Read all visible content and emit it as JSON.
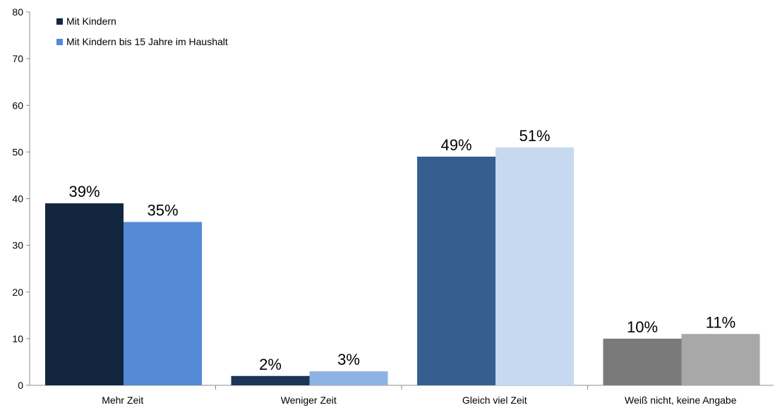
{
  "chart_data": {
    "type": "bar",
    "title": "",
    "xlabel": "",
    "ylabel": "",
    "ylim": [
      0,
      80
    ],
    "yticks": [
      0,
      10,
      20,
      30,
      40,
      50,
      60,
      70,
      80
    ],
    "grid": false,
    "legend_position": "top-left",
    "categories": [
      "Mehr Zeit",
      "Weniger Zeit",
      "Gleich viel Zeit",
      "Weiß nicht, keine Angabe"
    ],
    "series": [
      {
        "name": "Mit Kindern",
        "values": [
          39,
          2,
          49,
          10
        ],
        "labels": [
          "39%",
          "2%",
          "49%",
          "10%"
        ],
        "colors": [
          "#13263f",
          "#1d3557",
          "#355f8f",
          "#7a7a7a"
        ]
      },
      {
        "name": "Mit Kindern bis 15 Jahre im Haushalt",
        "values": [
          35,
          3,
          51,
          11
        ],
        "labels": [
          "35%",
          "3%",
          "51%",
          "11%"
        ],
        "colors": [
          "#548ad6",
          "#8db3e2",
          "#c6d9f1",
          "#a8a8a8"
        ]
      }
    ],
    "legend_colors": [
      "#13263f",
      "#548ad6"
    ]
  }
}
